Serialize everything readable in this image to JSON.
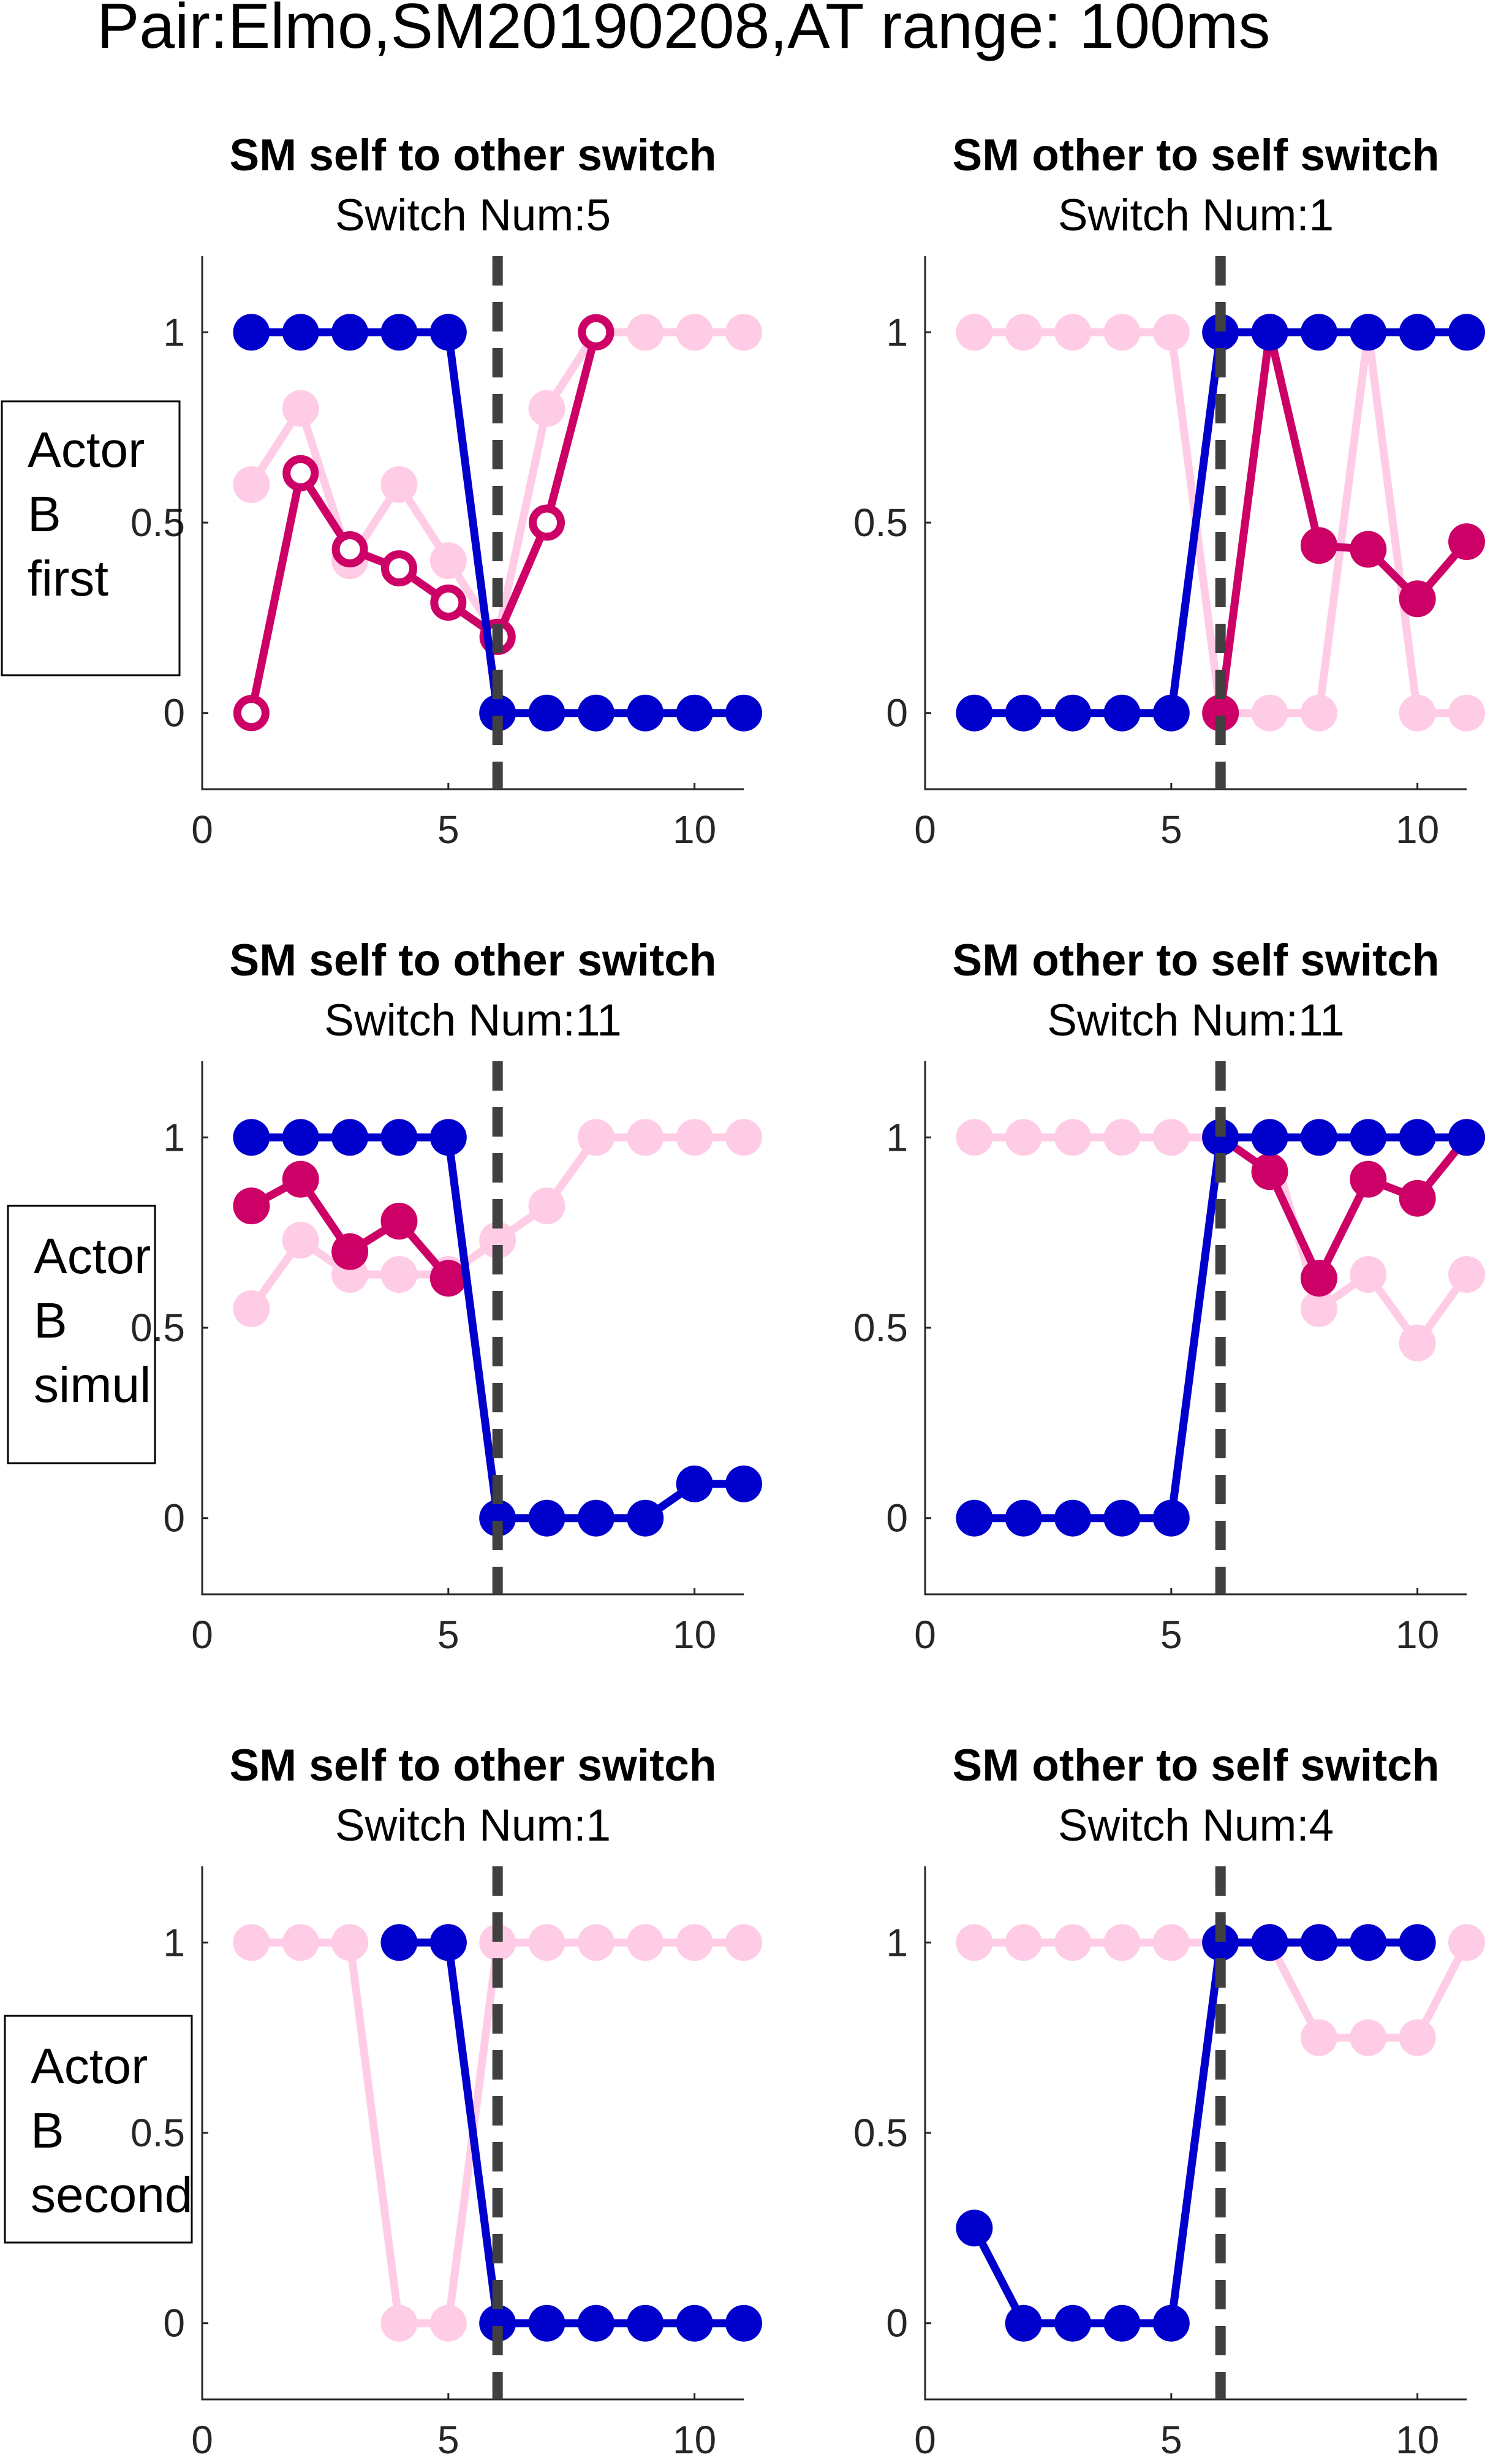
{
  "figure_title": "Pair:Elmo,SM20190208,AT range: 100ms",
  "colors": {
    "own": "#0000cc",
    "other_filled": "#cc0066",
    "other_light": "#ffcce6",
    "divider": "#404040",
    "axis": "#262626"
  },
  "row_labels": [
    [
      "Actor",
      "B",
      "first"
    ],
    [
      "Actor",
      "B",
      "simul"
    ],
    [
      "Actor",
      "B",
      "second"
    ]
  ],
  "chart_data": [
    {
      "type": "line",
      "title": "SM self to other switch",
      "subtitle": "Switch Num:5",
      "xlim": [
        0,
        11
      ],
      "ylim": [
        -0.2,
        1.2
      ],
      "xticks": [
        "0",
        "5",
        "10"
      ],
      "yticks": [
        "0",
        "0.5",
        "1"
      ],
      "switch_x": 6,
      "series": [
        {
          "values": [
            0.6,
            0.8,
            0.4,
            0.6,
            0.4,
            0.2,
            0.8,
            1,
            1,
            1,
            1
          ],
          "color": "light",
          "marker": "filled"
        },
        {
          "values": [
            0,
            0.63,
            0.43,
            0.38,
            0.29,
            0.2,
            0.5,
            1
          ],
          "color": "dark",
          "marker": "open"
        },
        {
          "values": [
            1,
            1,
            1,
            1,
            1,
            0,
            0,
            0,
            0,
            0,
            0
          ],
          "color": "blue",
          "marker": "filled"
        }
      ]
    },
    {
      "type": "line",
      "title": "SM other to self switch",
      "subtitle": "Switch Num:1",
      "xlim": [
        0,
        11
      ],
      "ylim": [
        -0.2,
        1.2
      ],
      "xticks": [
        "0",
        "5",
        "10"
      ],
      "yticks": [
        "0",
        "0.5",
        "1"
      ],
      "switch_x": 6,
      "series": [
        {
          "values": [
            1,
            1,
            1,
            1,
            1,
            0,
            0,
            0,
            1,
            0,
            0
          ],
          "color": "light",
          "marker": "filled"
        },
        {
          "values": [
            null,
            null,
            null,
            null,
            null,
            0,
            1,
            0.44,
            0.43,
            0.3,
            0.45
          ],
          "color": "dark",
          "marker": "filled"
        },
        {
          "values": [
            0,
            0,
            0,
            0,
            0,
            1,
            1,
            1,
            1,
            1,
            1
          ],
          "color": "blue",
          "marker": "filled"
        }
      ]
    },
    {
      "type": "line",
      "title": "SM self to other switch",
      "subtitle": "Switch Num:11",
      "xlim": [
        0,
        11
      ],
      "ylim": [
        -0.2,
        1.2
      ],
      "xticks": [
        "0",
        "5",
        "10"
      ],
      "yticks": [
        "0",
        "0.5",
        "1"
      ],
      "switch_x": 6,
      "series": [
        {
          "values": [
            0.55,
            0.73,
            0.64,
            0.64,
            0.64,
            0.73,
            0.82,
            1,
            1,
            1,
            1
          ],
          "color": "light",
          "marker": "filled"
        },
        {
          "values": [
            0.82,
            0.89,
            0.7,
            0.78,
            0.63
          ],
          "color": "dark",
          "marker": "filled"
        },
        {
          "values": [
            1,
            1,
            1,
            1,
            1,
            0,
            0,
            0,
            0,
            0.09,
            0.09
          ],
          "color": "blue",
          "marker": "filled"
        }
      ]
    },
    {
      "type": "line",
      "title": "SM other to self switch",
      "subtitle": "Switch Num:11",
      "xlim": [
        0,
        11
      ],
      "ylim": [
        -0.2,
        1.2
      ],
      "xticks": [
        "0",
        "5",
        "10"
      ],
      "yticks": [
        "0",
        "0.5",
        "1"
      ],
      "switch_x": 6,
      "series": [
        {
          "values": [
            1,
            1,
            1,
            1,
            1,
            1,
            1,
            0.55,
            0.64,
            0.46,
            0.64
          ],
          "color": "light",
          "marker": "filled"
        },
        {
          "values": [
            null,
            null,
            null,
            null,
            null,
            1,
            0.91,
            0.63,
            0.89,
            0.84,
            1
          ],
          "color": "dark",
          "marker": "filled"
        },
        {
          "values": [
            0,
            0,
            0,
            0,
            0,
            1,
            1,
            1,
            1,
            1,
            1
          ],
          "color": "blue",
          "marker": "filled"
        }
      ]
    },
    {
      "type": "line",
      "title": "SM self to other switch",
      "subtitle": "Switch Num:1",
      "xlim": [
        0,
        11
      ],
      "ylim": [
        -0.2,
        1.2
      ],
      "xticks": [
        "0",
        "5",
        "10"
      ],
      "yticks": [
        "0",
        "0.5",
        "1"
      ],
      "switch_x": 6,
      "series": [
        {
          "values": [
            1,
            1,
            1,
            0,
            0,
            1,
            1,
            1,
            1,
            1,
            1
          ],
          "color": "light",
          "marker": "filled"
        },
        {
          "values": [
            null,
            null,
            null,
            null,
            1
          ],
          "color": "dark",
          "marker": "filled"
        },
        {
          "values": [
            null,
            null,
            null,
            1,
            1,
            0,
            0,
            0,
            0,
            0,
            0
          ],
          "color": "blue",
          "marker": "filled"
        }
      ]
    },
    {
      "type": "line",
      "title": "SM other to self switch",
      "subtitle": "Switch Num:4",
      "xlim": [
        0,
        11
      ],
      "ylim": [
        -0.2,
        1.2
      ],
      "xticks": [
        "0",
        "5",
        "10"
      ],
      "yticks": [
        "0",
        "0.5",
        "1"
      ],
      "switch_x": 6,
      "series": [
        {
          "values": [
            1,
            1,
            1,
            1,
            1,
            1,
            1,
            0.75,
            0.75,
            0.75,
            1
          ],
          "color": "light",
          "marker": "filled"
        },
        {
          "values": [
            null,
            null,
            null,
            null,
            null,
            null,
            1,
            1
          ],
          "color": "dark",
          "marker": "filled"
        },
        {
          "values": [
            0.25,
            0,
            0,
            0,
            0,
            1,
            1,
            1,
            1,
            1
          ],
          "color": "blue",
          "marker": "filled"
        }
      ]
    }
  ]
}
